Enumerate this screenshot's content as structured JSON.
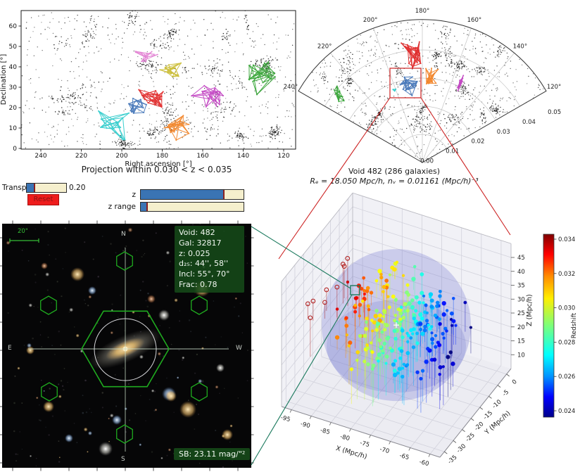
{
  "projection_panel": {
    "xlabel": "Right ascension [°]",
    "ylabel": "Declination [°]",
    "x_ticks": [
      240,
      220,
      200,
      180,
      160,
      140,
      120
    ],
    "y_ticks": [
      0,
      10,
      20,
      30,
      40,
      50,
      60
    ],
    "caption": "Projection within 0.030 < z < 0.035",
    "voids": [
      {
        "name": "void-pink",
        "color": "#e07ad0",
        "ra": 189,
        "dec": 46,
        "ra_r": 7.5,
        "dec_r": 4.0,
        "n": 16
      },
      {
        "name": "void-yellow",
        "color": "#c9bb2e",
        "ra": 175.5,
        "dec": 39,
        "ra_r": 4.5,
        "dec_r": 4.2,
        "n": 15
      },
      {
        "name": "void-green",
        "color": "#2ca02c",
        "ra": 130,
        "dec": 36,
        "ra_r": 6.5,
        "dec_r": 7.5,
        "n": 22
      },
      {
        "name": "void-magenta",
        "color": "#c03ec0",
        "ra": 156,
        "dec": 25,
        "ra_r": 6.5,
        "dec_r": 6.0,
        "n": 18
      },
      {
        "name": "void-red",
        "color": "#e02222",
        "ra": 184,
        "dec": 24.5,
        "ra_r": 7.5,
        "dec_r": 4.0,
        "n": 20
      },
      {
        "name": "void-blue",
        "color": "#3b6fb5",
        "ra": 193,
        "dec": 20,
        "ra_r": 5.5,
        "dec_r": 4.5,
        "n": 16
      },
      {
        "name": "void-cyan",
        "color": "#25c9c9",
        "ra": 204,
        "dec": 10,
        "ra_r": 6.5,
        "dec_r": 6.5,
        "n": 16
      },
      {
        "name": "void-orange",
        "color": "#f28020",
        "ra": 172,
        "dec": 11,
        "ra_r": 6.0,
        "dec_r": 5.5,
        "n": 18
      }
    ]
  },
  "controls": {
    "transparency": {
      "label": "Transp.",
      "value": "0.20",
      "fraction": 0.2
    },
    "reset": {
      "label": "Reset"
    },
    "z": {
      "label": "z",
      "fraction": 0.81
    },
    "z_range": {
      "label": "z range",
      "fraction": 0.06
    }
  },
  "wedge_panel": {
    "angle_ticks": [
      "240°",
      "220°",
      "200°",
      "180°",
      "160°",
      "140°",
      "120°"
    ],
    "angle_values": [
      240,
      220,
      200,
      180,
      160,
      140,
      120
    ],
    "radius_ticks": [
      "0.00",
      "0.01",
      "0.02",
      "0.03",
      "0.04",
      "0.05"
    ],
    "radius_values": [
      0,
      0.01,
      0.02,
      0.03,
      0.04,
      0.05
    ],
    "caption_line1": "Void 482 (286 galaxies)",
    "caption_line2": "Rₑ = 18.050 Mpc/h, nᵥ = 0.01161 (Mpc/h)⁻³",
    "voids": [
      {
        "name": "void-red",
        "color": "#e02222",
        "theta": 185,
        "r": 0.0395,
        "th_r": 4.5,
        "r_r": 0.0045,
        "n": 22
      },
      {
        "name": "void-blue",
        "color": "#3b6fb5",
        "theta": 190,
        "r": 0.028,
        "th_r": 5.0,
        "r_r": 0.0032,
        "n": 20
      },
      {
        "name": "void-orange",
        "color": "#f28020",
        "theta": 174,
        "r": 0.031,
        "th_r": 3.5,
        "r_r": 0.0038,
        "n": 18
      },
      {
        "name": "void-magenta",
        "color": "#c03ec0",
        "theta": 154,
        "r": 0.032,
        "th_r": 2.0,
        "r_r": 0.003,
        "n": 10
      },
      {
        "name": "void-green",
        "color": "#2ca02c",
        "theta": 231,
        "r": 0.038,
        "th_r": 3.5,
        "r_r": 0.0028,
        "n": 12
      },
      {
        "name": "void-cyan",
        "color": "#25c9c9",
        "theta": 201,
        "r": 0.0284,
        "th_r": 1.2,
        "r_r": 0.0022,
        "n": 6
      }
    ]
  },
  "galaxy_panel": {
    "scale_label": "20\"",
    "compass_n": "N",
    "compass_e": "E",
    "compass_w": "W",
    "compass_s": "S",
    "info_lines": [
      "Void: 482",
      "Gal: 32817",
      "z: 0.025",
      "d₂₅: 44'', 58''",
      "Incl: 55°, 70°",
      "Frac: 0.78"
    ],
    "sb_label": "SB: 23.11 mag/\"²"
  },
  "plot3d": {
    "xlabel": "X (Mpc/h)",
    "ylabel": "Y (Mpc/h)",
    "zlabel": "Z (Mpc/h)",
    "x_ticks": [
      -95,
      -90,
      -85,
      -80,
      -75,
      -70,
      -65,
      -60
    ],
    "y_ticks": [
      0,
      -5,
      -10,
      -15,
      -20,
      -25,
      -30,
      -35
    ],
    "z_ticks": [
      45,
      40,
      35,
      30,
      25,
      20,
      15,
      10
    ],
    "n_points": 286
  },
  "colorbar": {
    "label": "Redshift",
    "ticks": [
      "0.034",
      "0.032",
      "0.030",
      "0.028",
      "0.026",
      "0.024"
    ]
  },
  "colors": {
    "slider_fill": "#3a74b4",
    "slider_track": "#f5efcd",
    "handle": "#8b2020",
    "reset_bg": "#ee1c1c",
    "connector_red": "#cc2222",
    "connector_green": "#1c7a5e",
    "hex_green": "#1faa1f",
    "overlay_green": "#164a19",
    "sphere": "#7b7fd4"
  }
}
